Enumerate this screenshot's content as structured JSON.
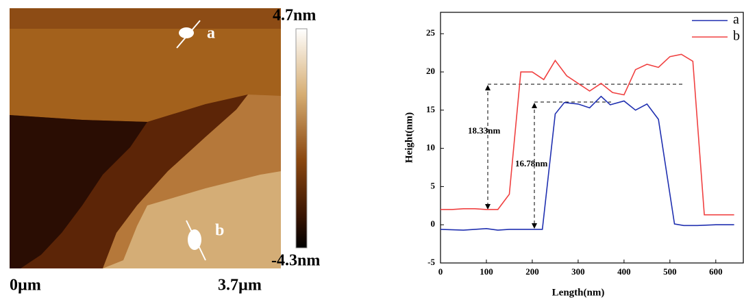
{
  "image": {
    "labels": [
      "a",
      "b"
    ],
    "colorbar": {
      "max": "4.7nm",
      "min": "-4.3nm"
    },
    "scale": {
      "start": "0µm",
      "end": "3.7µm"
    }
  },
  "chart_data": {
    "type": "line",
    "xlabel": "Length(nm)",
    "ylabel": "Height(nm)",
    "xlim": [
      0,
      660
    ],
    "ylim": [
      -5,
      27.8
    ],
    "xticks": [
      0,
      100,
      200,
      300,
      400,
      500,
      600
    ],
    "yticks": [
      -5,
      0,
      5,
      10,
      15,
      20,
      25
    ],
    "annotations": [
      "18.33nm",
      "16.78nm"
    ],
    "series": [
      {
        "name": "a",
        "color": "#1f2fb0",
        "x": [
          0,
          50,
          100,
          125,
          150,
          175,
          200,
          222,
          250,
          270,
          300,
          325,
          350,
          370,
          400,
          425,
          450,
          475,
          510,
          530,
          560,
          600,
          640
        ],
        "values": [
          -0.6,
          -0.7,
          -0.5,
          -0.7,
          -0.6,
          -0.6,
          -0.6,
          -0.6,
          14.5,
          16,
          15.8,
          15.3,
          16.8,
          15.7,
          16.2,
          15,
          15.8,
          13.8,
          0.1,
          -0.1,
          -0.1,
          0,
          0
        ]
      },
      {
        "name": "b",
        "color": "#f04040",
        "x": [
          0,
          25,
          50,
          75,
          100,
          125,
          150,
          175,
          200,
          225,
          250,
          275,
          300,
          325,
          350,
          375,
          400,
          425,
          450,
          475,
          500,
          525,
          550,
          575,
          600,
          640
        ],
        "values": [
          2,
          2,
          2.1,
          2.1,
          2,
          2,
          4,
          20,
          20,
          19,
          21.5,
          19.5,
          18.5,
          17.5,
          18.5,
          17.3,
          17,
          20.3,
          21,
          20.6,
          22,
          22.3,
          21.4,
          1.3,
          1.3,
          1.3
        ]
      }
    ]
  }
}
